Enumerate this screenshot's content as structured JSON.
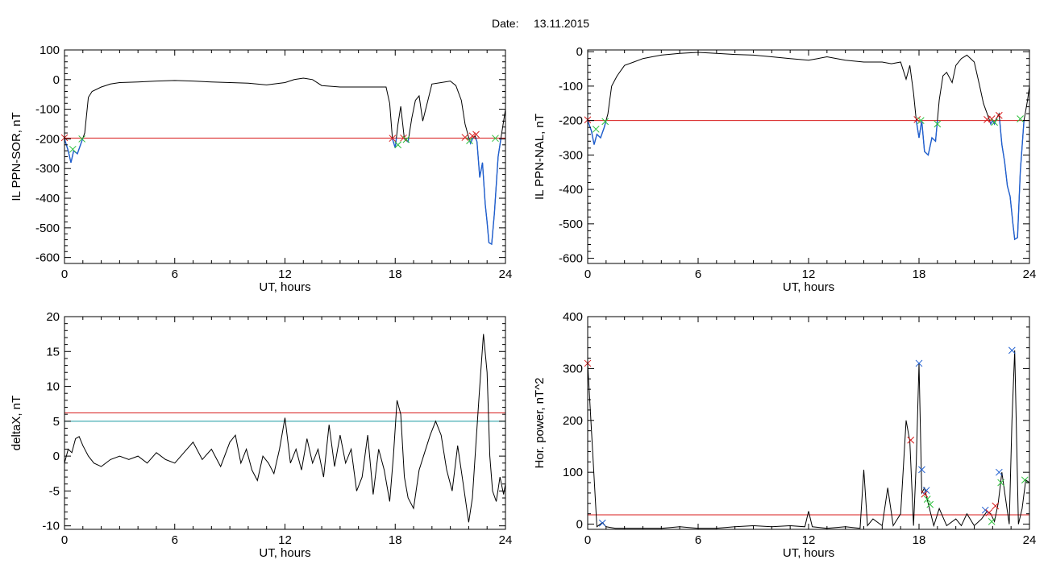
{
  "figure": {
    "title_label": "Date:",
    "title_date": "13.11.2015"
  },
  "colors": {
    "trace": "#000000",
    "below_threshold": "#1f5fd0",
    "threshold_red": "#d81e1e",
    "threshold_teal": "#1a9aa0",
    "marker_red": "#d81e1e",
    "marker_green": "#2bbf3a",
    "marker_blue": "#1f5fd0"
  },
  "chart_data": [
    {
      "id": "ppn-sor",
      "type": "line",
      "xlabel": "UT, hours",
      "ylabel": "IL PPN-SOR, nT",
      "xlim": [
        0,
        24
      ],
      "ylim": [
        -620,
        100
      ],
      "xticks": [
        0,
        6,
        12,
        18,
        24
      ],
      "yticks": [
        100,
        0,
        -100,
        -200,
        -300,
        -400,
        -500,
        -600
      ],
      "thresholds": [
        {
          "y": -197,
          "color": "threshold_red"
        }
      ],
      "highlight_below": -197,
      "series": [
        {
          "x": [
            0,
            0.2,
            0.35,
            0.5,
            0.7,
            0.9,
            1.1,
            1.3,
            1.5,
            2,
            2.5,
            3,
            4,
            5,
            6,
            7,
            8,
            9,
            10,
            11,
            12,
            12.5,
            13,
            13.5,
            14,
            15,
            16,
            17,
            17.5,
            17.7,
            17.85,
            18,
            18.15,
            18.3,
            18.5,
            18.7,
            18.9,
            19.1,
            19.3,
            19.5,
            20,
            20.5,
            21,
            21.3,
            21.6,
            21.8,
            22,
            22.1,
            22.2,
            22.35,
            22.45,
            22.6,
            22.75,
            22.9,
            23,
            23.1,
            23.25,
            23.4,
            23.6,
            23.8,
            24
          ],
          "y": [
            -200,
            -240,
            -280,
            -240,
            -250,
            -215,
            -180,
            -60,
            -40,
            -25,
            -15,
            -10,
            -8,
            -5,
            -3,
            -5,
            -8,
            -10,
            -12,
            -18,
            -10,
            0,
            5,
            0,
            -20,
            -25,
            -25,
            -25,
            -25,
            -80,
            -200,
            -230,
            -150,
            -90,
            -200,
            -210,
            -130,
            -70,
            -55,
            -140,
            -15,
            -10,
            -5,
            -20,
            -70,
            -150,
            -195,
            -215,
            -200,
            -190,
            -210,
            -330,
            -280,
            -420,
            -480,
            -550,
            -555,
            -450,
            -260,
            -180,
            -100
          ]
        }
      ],
      "markers": [
        {
          "x": 0.0,
          "y": -196,
          "color": "marker_red"
        },
        {
          "x": 0.45,
          "y": -235,
          "color": "marker_green"
        },
        {
          "x": 0.95,
          "y": -200,
          "color": "marker_green"
        },
        {
          "x": 17.85,
          "y": -198,
          "color": "marker_red"
        },
        {
          "x": 18.15,
          "y": -220,
          "color": "marker_green"
        },
        {
          "x": 18.45,
          "y": -197,
          "color": "marker_red"
        },
        {
          "x": 18.6,
          "y": -202,
          "color": "marker_green"
        },
        {
          "x": 21.8,
          "y": -195,
          "color": "marker_red"
        },
        {
          "x": 22.05,
          "y": -206,
          "color": "marker_green"
        },
        {
          "x": 22.2,
          "y": -190,
          "color": "marker_red"
        },
        {
          "x": 22.4,
          "y": -185,
          "color": "marker_red"
        },
        {
          "x": 23.45,
          "y": -198,
          "color": "marker_green"
        }
      ]
    },
    {
      "id": "ppn-nal",
      "type": "line",
      "xlabel": "UT, hours",
      "ylabel": "IL PPN-NAL, nT",
      "xlim": [
        0,
        24
      ],
      "ylim": [
        -615,
        5
      ],
      "xticks": [
        0,
        6,
        12,
        18,
        24
      ],
      "yticks": [
        0,
        -100,
        -200,
        -300,
        -400,
        -500,
        -600
      ],
      "thresholds": [
        {
          "y": -200,
          "color": "threshold_red"
        }
      ],
      "highlight_below": -200,
      "series": [
        {
          "x": [
            0,
            0.2,
            0.35,
            0.5,
            0.7,
            0.9,
            1.1,
            1.3,
            1.6,
            2,
            2.5,
            3,
            3.5,
            4,
            5,
            6,
            7,
            8,
            9,
            10,
            11,
            12,
            12.5,
            13,
            14,
            15,
            16,
            16.5,
            17,
            17.3,
            17.5,
            17.7,
            17.85,
            18,
            18.15,
            18.3,
            18.5,
            18.7,
            18.9,
            19.1,
            19.3,
            19.5,
            19.8,
            20,
            20.3,
            20.6,
            21,
            21.3,
            21.5,
            21.7,
            21.9,
            22,
            22.1,
            22.2,
            22.35,
            22.5,
            22.65,
            22.8,
            22.95,
            23.1,
            23.2,
            23.35,
            23.5,
            23.7,
            23.9,
            24
          ],
          "y": [
            -200,
            -230,
            -270,
            -240,
            -250,
            -220,
            -180,
            -100,
            -70,
            -40,
            -30,
            -20,
            -15,
            -10,
            -5,
            -2,
            -5,
            -8,
            -10,
            -15,
            -20,
            -25,
            -20,
            -15,
            -25,
            -30,
            -30,
            -35,
            -30,
            -80,
            -40,
            -120,
            -200,
            -250,
            -200,
            -290,
            -300,
            -250,
            -260,
            -140,
            -70,
            -60,
            -90,
            -40,
            -20,
            -10,
            -30,
            -100,
            -150,
            -180,
            -210,
            -200,
            -210,
            -195,
            -180,
            -270,
            -320,
            -390,
            -420,
            -500,
            -545,
            -540,
            -350,
            -200,
            -140,
            -100
          ]
        }
      ],
      "markers": [
        {
          "x": 0.0,
          "y": -198,
          "color": "marker_red"
        },
        {
          "x": 0.45,
          "y": -225,
          "color": "marker_green"
        },
        {
          "x": 0.95,
          "y": -203,
          "color": "marker_green"
        },
        {
          "x": 17.9,
          "y": -197,
          "color": "marker_red"
        },
        {
          "x": 18.1,
          "y": -200,
          "color": "marker_green"
        },
        {
          "x": 19.0,
          "y": -210,
          "color": "marker_green"
        },
        {
          "x": 21.7,
          "y": -197,
          "color": "marker_red"
        },
        {
          "x": 21.95,
          "y": -195,
          "color": "marker_red"
        },
        {
          "x": 22.1,
          "y": -205,
          "color": "marker_green"
        },
        {
          "x": 22.35,
          "y": -185,
          "color": "marker_red"
        },
        {
          "x": 23.5,
          "y": -195,
          "color": "marker_green"
        }
      ]
    },
    {
      "id": "deltax",
      "type": "line",
      "xlabel": "UT, hours",
      "ylabel": "deltaX, nT",
      "xlim": [
        0,
        24
      ],
      "ylim": [
        -10.5,
        20
      ],
      "xticks": [
        0,
        6,
        12,
        18,
        24
      ],
      "yticks": [
        20,
        15,
        10,
        5,
        0,
        -5,
        -10
      ],
      "thresholds": [
        {
          "y": 6.2,
          "color": "threshold_red"
        },
        {
          "y": 5.0,
          "color": "threshold_teal"
        }
      ],
      "series": [
        {
          "x": [
            0,
            0.2,
            0.4,
            0.6,
            0.8,
            1.0,
            1.3,
            1.6,
            2,
            2.5,
            3,
            3.5,
            4,
            4.5,
            5,
            5.5,
            6,
            6.5,
            7,
            7.5,
            8,
            8.5,
            9,
            9.3,
            9.6,
            9.9,
            10.2,
            10.5,
            10.8,
            11.1,
            11.4,
            11.7,
            12,
            12.3,
            12.6,
            12.9,
            13.2,
            13.5,
            13.8,
            14.1,
            14.4,
            14.7,
            15,
            15.3,
            15.6,
            15.9,
            16.2,
            16.5,
            16.8,
            17.1,
            17.4,
            17.7,
            17.9,
            18.1,
            18.3,
            18.5,
            18.7,
            19,
            19.3,
            19.6,
            19.9,
            20.2,
            20.5,
            20.8,
            21.1,
            21.4,
            21.7,
            22,
            22.2,
            22.4,
            22.6,
            22.8,
            23,
            23.15,
            23.3,
            23.5,
            23.7,
            23.9,
            24
          ],
          "y": [
            -1,
            1,
            0.5,
            2.5,
            2.8,
            1.5,
            0,
            -1,
            -1.5,
            -0.5,
            0,
            -0.5,
            0,
            -1,
            0.5,
            -0.5,
            -1,
            0.5,
            2,
            -0.5,
            1,
            -1.5,
            2,
            3,
            -1,
            1,
            -2,
            -3.5,
            0,
            -1,
            -2.5,
            1,
            5.5,
            -1,
            1,
            -2,
            2.5,
            -1,
            1,
            -3,
            4.5,
            -1.5,
            3,
            -1,
            1,
            -5,
            -3,
            3,
            -5.5,
            1,
            -2,
            -6.5,
            0,
            8,
            6,
            -3,
            -6,
            -7.5,
            -2,
            0.5,
            3,
            5,
            3,
            -2,
            -5,
            1.5,
            -4,
            -9.5,
            -6,
            2,
            10,
            17.5,
            12,
            0,
            -5,
            -6.5,
            -3,
            -5.5,
            -4
          ]
        }
      ],
      "markers": []
    },
    {
      "id": "hor-power",
      "type": "line",
      "xlabel": "UT, hours",
      "ylabel": "Hor. power, nT^2",
      "xlim": [
        0,
        24
      ],
      "ylim": [
        -10,
        400
      ],
      "xticks": [
        0,
        6,
        12,
        18,
        24
      ],
      "yticks": [
        400,
        300,
        200,
        100,
        0
      ],
      "thresholds": [
        {
          "y": 18,
          "color": "threshold_red"
        }
      ],
      "series": [
        {
          "x": [
            0,
            0.5,
            0.8,
            1,
            1.5,
            2,
            3,
            4,
            5,
            6,
            7,
            8,
            9,
            10,
            11,
            11.8,
            12,
            12.2,
            13,
            14,
            14.8,
            15,
            15.2,
            15.5,
            16,
            16.3,
            16.6,
            17,
            17.3,
            17.5,
            17.7,
            17.85,
            18,
            18.15,
            18.3,
            18.5,
            18.8,
            19.1,
            19.5,
            20,
            20.3,
            20.6,
            21,
            21.4,
            21.7,
            21.9,
            22.1,
            22.3,
            22.5,
            22.7,
            22.9,
            23.05,
            23.2,
            23.4,
            23.6,
            23.8,
            24
          ],
          "y": [
            310,
            -5,
            3,
            -5,
            -8,
            -8,
            -8,
            -8,
            -5,
            -8,
            -8,
            -5,
            -3,
            -5,
            -3,
            -5,
            25,
            -5,
            -8,
            -5,
            -8,
            105,
            -3,
            10,
            -3,
            70,
            -3,
            20,
            200,
            160,
            -3,
            120,
            310,
            60,
            70,
            40,
            -3,
            30,
            -3,
            10,
            -3,
            20,
            -3,
            10,
            25,
            20,
            5,
            40,
            100,
            50,
            0,
            200,
            335,
            0,
            30,
            85,
            80
          ]
        }
      ],
      "markers": [
        {
          "x": 0.0,
          "y": 310,
          "color": "marker_red"
        },
        {
          "x": 0.8,
          "y": 2,
          "color": "marker_blue"
        },
        {
          "x": 17.55,
          "y": 162,
          "color": "marker_red"
        },
        {
          "x": 18.0,
          "y": 310,
          "color": "marker_blue"
        },
        {
          "x": 18.15,
          "y": 105,
          "color": "marker_blue"
        },
        {
          "x": 18.3,
          "y": 58,
          "color": "marker_red"
        },
        {
          "x": 18.4,
          "y": 65,
          "color": "marker_blue"
        },
        {
          "x": 18.45,
          "y": 48,
          "color": "marker_green"
        },
        {
          "x": 18.6,
          "y": 38,
          "color": "marker_green"
        },
        {
          "x": 21.6,
          "y": 27,
          "color": "marker_blue"
        },
        {
          "x": 21.8,
          "y": 22,
          "color": "marker_red"
        },
        {
          "x": 21.95,
          "y": 5,
          "color": "marker_green"
        },
        {
          "x": 22.15,
          "y": 35,
          "color": "marker_red"
        },
        {
          "x": 22.35,
          "y": 100,
          "color": "marker_blue"
        },
        {
          "x": 22.45,
          "y": 80,
          "color": "marker_green"
        },
        {
          "x": 23.05,
          "y": 335,
          "color": "marker_blue"
        },
        {
          "x": 23.75,
          "y": 85,
          "color": "marker_green"
        }
      ]
    }
  ]
}
